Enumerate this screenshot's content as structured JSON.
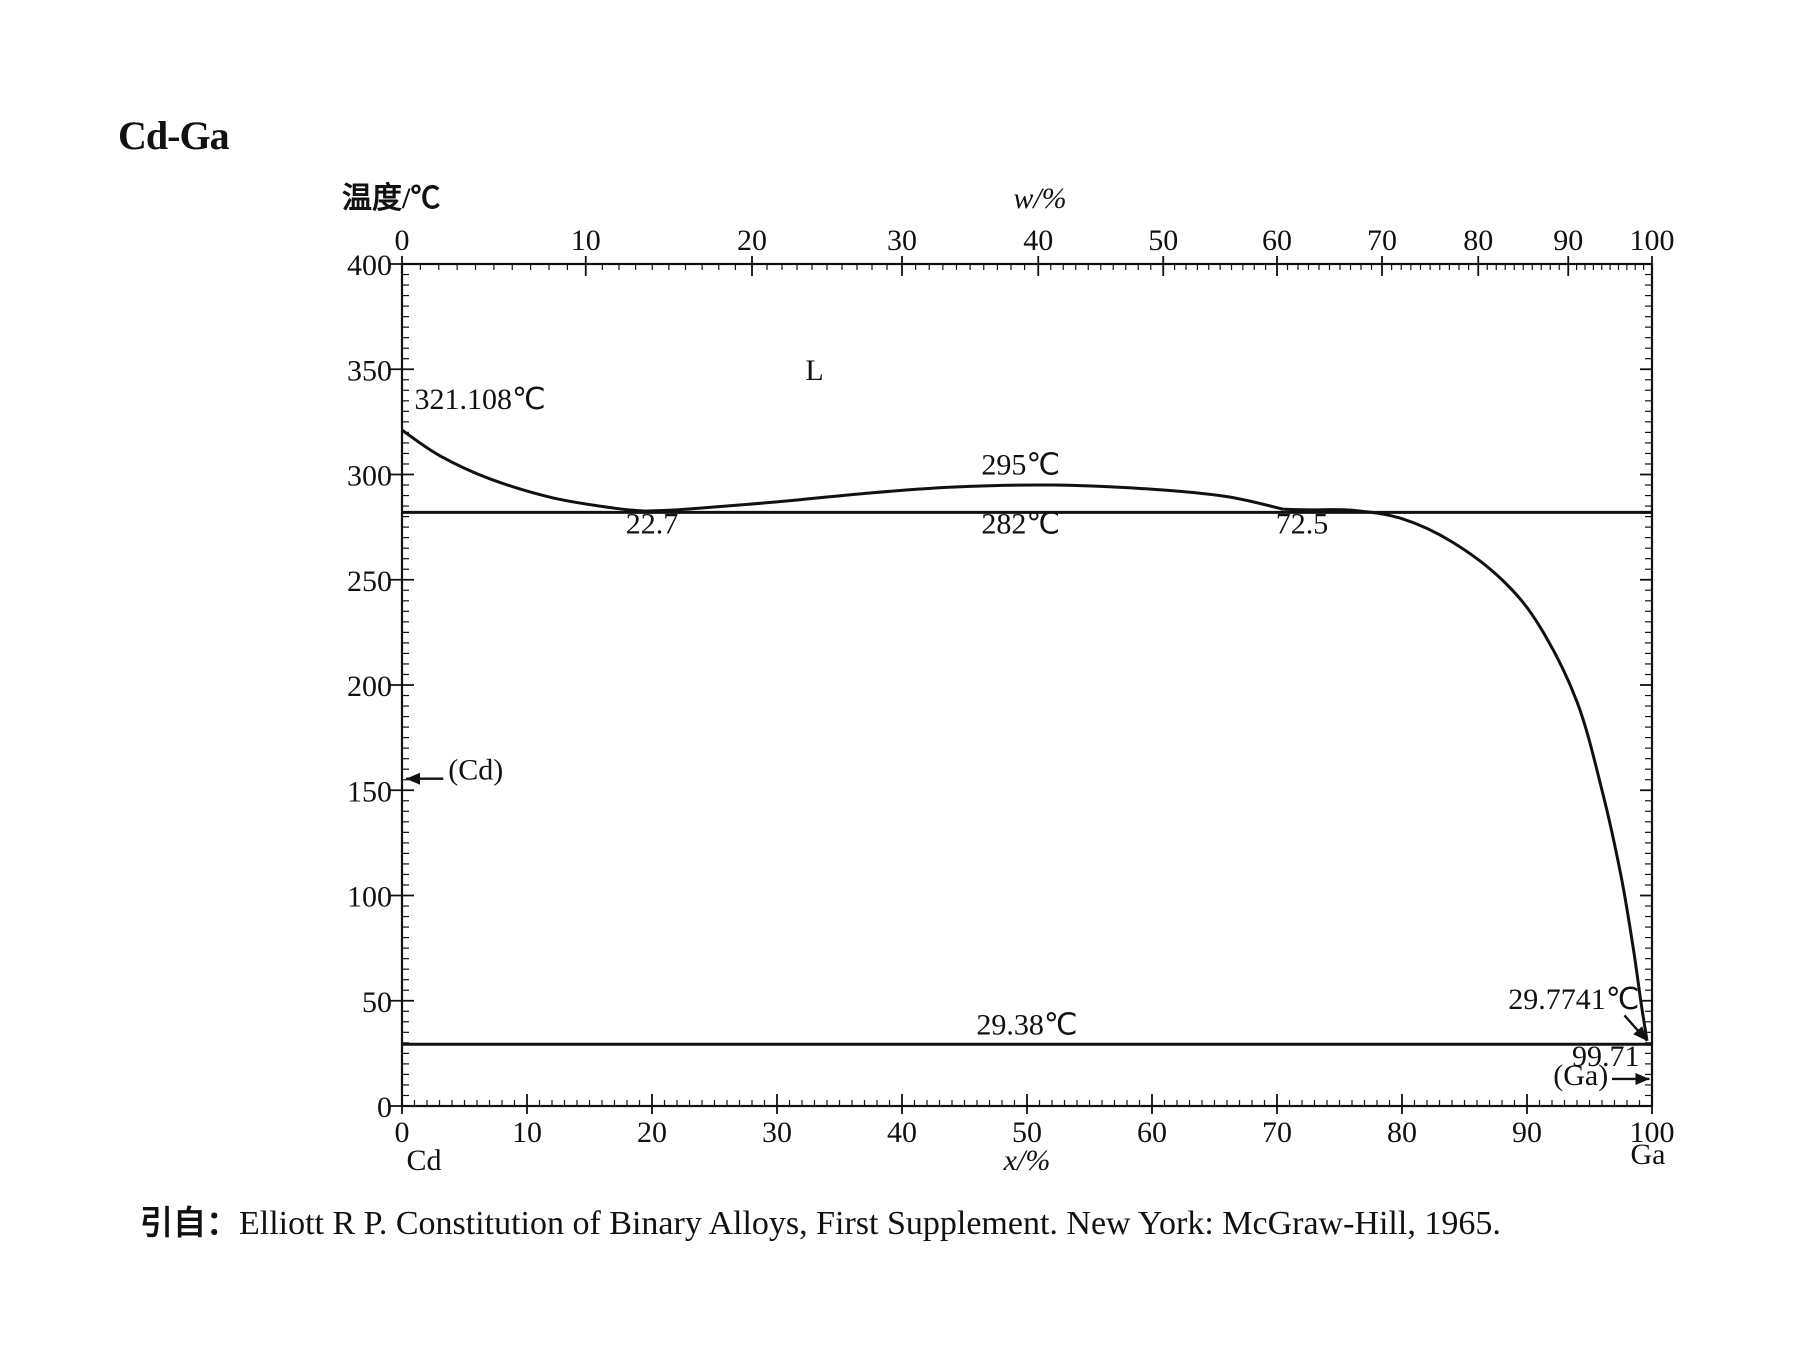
{
  "title": "Cd-Ga",
  "citation": {
    "prefix": "引自：",
    "text": "Elliott R P. Constitution of Binary Alloys, First Supplement. New York: McGraw-Hill, 1965."
  },
  "chart_data": {
    "type": "line",
    "title": "Cd-Ga",
    "ylabel": "温度/℃",
    "xlabel_bottom": "x/%",
    "xlabel_top": "w/%",
    "ylim": [
      0,
      400
    ],
    "xlim": [
      0,
      100
    ],
    "y_ticks": [
      "0",
      "50",
      "100",
      "150",
      "200",
      "250",
      "300",
      "350",
      "400"
    ],
    "x_ticks_bottom": [
      "0",
      "10",
      "20",
      "30",
      "40",
      "50",
      "60",
      "70",
      "80",
      "90",
      "100"
    ],
    "x_ticks_top": [
      {
        "label": "0",
        "x_at": 0
      },
      {
        "label": "10",
        "x_at": 14.7
      },
      {
        "label": "20",
        "x_at": 28.0
      },
      {
        "label": "30",
        "x_at": 40.0
      },
      {
        "label": "40",
        "x_at": 50.9
      },
      {
        "label": "50",
        "x_at": 60.9
      },
      {
        "label": "60",
        "x_at": 70.0
      },
      {
        "label": "70",
        "x_at": 78.4
      },
      {
        "label": "80",
        "x_at": 86.1
      },
      {
        "label": "90",
        "x_at": 93.3
      },
      {
        "label": "100",
        "x_at": 100
      }
    ],
    "end_labels": {
      "left": "Cd",
      "right": "Ga"
    },
    "phase_labels": [
      {
        "text": "L",
        "x": 33,
        "y": 345
      }
    ],
    "series": [
      {
        "points": [
          [
            0,
            321.108
          ],
          [
            3,
            309
          ],
          [
            7,
            298
          ],
          [
            12,
            289
          ],
          [
            17,
            284
          ],
          [
            19.5,
            282.6
          ]
        ]
      },
      {
        "points": [
          [
            19.5,
            282.6
          ],
          [
            22.7,
            283.5
          ],
          [
            30,
            287
          ],
          [
            37,
            291
          ],
          [
            44,
            294
          ],
          [
            52,
            295
          ],
          [
            60,
            293
          ],
          [
            66,
            289.5
          ],
          [
            70.5,
            283.5
          ]
        ]
      },
      {
        "points": [
          [
            70.5,
            283.5
          ],
          [
            72.5,
            283.2
          ],
          [
            76,
            283
          ],
          [
            80,
            279
          ],
          [
            84,
            268
          ],
          [
            88,
            250
          ],
          [
            91,
            228
          ],
          [
            94,
            192
          ],
          [
            96,
            150
          ],
          [
            97.5,
            110
          ],
          [
            98.5,
            75
          ],
          [
            99.1,
            50
          ],
          [
            99.6,
            31
          ]
        ]
      },
      {
        "points": [
          [
            0,
            282
          ],
          [
            100,
            282
          ]
        ]
      },
      {
        "points": [
          [
            0,
            29.38
          ],
          [
            100,
            29.38
          ]
        ]
      }
    ],
    "annotations": [
      {
        "text": "321.108℃",
        "x": 1,
        "y": 331
      },
      {
        "text": "295℃",
        "x": 49,
        "y": 300
      },
      {
        "text": "282℃",
        "x": 49,
        "y": 272
      },
      {
        "text": "22.7",
        "x": 20,
        "y": 272
      },
      {
        "text": "72.5",
        "x": 72,
        "y": 272
      },
      {
        "text": "(Cd)",
        "x": 4,
        "y": 155
      },
      {
        "text": "29.7741℃",
        "x": 88,
        "y": 46
      },
      {
        "text": "29.38℃",
        "x": 50,
        "y": 34
      },
      {
        "text": "99.71",
        "x": 96,
        "y": 19
      },
      {
        "text": "(Ga)",
        "x": 96,
        "y": 10
      }
    ]
  }
}
